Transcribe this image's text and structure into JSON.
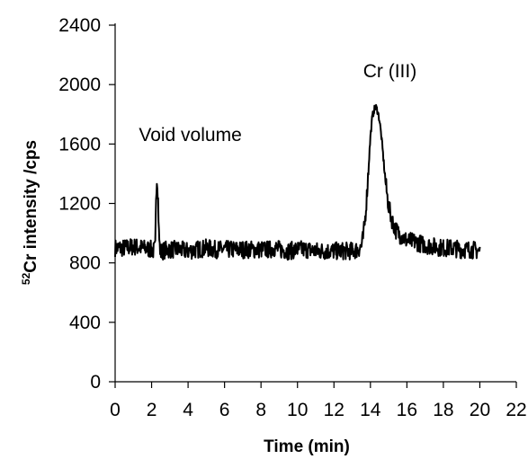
{
  "chart_data": {
    "type": "line",
    "xlabel": "Time (min)",
    "ylabel_sup": "52",
    "ylabel_main": "Cr intensity /cps",
    "xlim": [
      0,
      22
    ],
    "ylim": [
      0,
      2400
    ],
    "x_ticks": [
      "0",
      "2",
      "4",
      "6",
      "8",
      "10",
      "12",
      "14",
      "16",
      "18",
      "20",
      "22"
    ],
    "y_ticks": [
      "0",
      "400",
      "800",
      "1200",
      "1600",
      "2000",
      "2400"
    ],
    "grid": false,
    "legend": "none",
    "line_color": "#000000",
    "annotations": [
      {
        "text": "Void volume",
        "x": 1.3,
        "y": 1620
      },
      {
        "text": "Cr (III)",
        "x": 13.6,
        "y": 2050
      }
    ],
    "series": [
      {
        "x": [
          0.0,
          0.5,
          1.0,
          1.5,
          2.0,
          2.1,
          2.2,
          2.25,
          2.3,
          2.35,
          2.4,
          2.45,
          2.5,
          2.6,
          2.8,
          3.0,
          3.5,
          4.0,
          4.5,
          5.0,
          5.5,
          6.0,
          6.5,
          7.0,
          7.5,
          8.0,
          8.5,
          8.7,
          8.8,
          9.0,
          9.5,
          10.0,
          10.5,
          11.0,
          11.5,
          12.0,
          12.5,
          13.0,
          13.3,
          13.5,
          13.6,
          13.7,
          13.8,
          13.9,
          14.0,
          14.1,
          14.2,
          14.3,
          14.4,
          14.5,
          14.6,
          14.7,
          14.8,
          14.9,
          15.0,
          15.2,
          15.4,
          15.6,
          15.8,
          16.0,
          16.5,
          17.0,
          17.5,
          18.0,
          18.5,
          19.0,
          19.5,
          20.0
        ],
        "y": [
          900,
          900,
          910,
          900,
          890,
          880,
          900,
          1300,
          1380,
          1250,
          1000,
          900,
          870,
          880,
          890,
          890,
          890,
          880,
          890,
          900,
          890,
          890,
          890,
          890,
          890,
          890,
          890,
          900,
          900,
          890,
          880,
          890,
          890,
          880,
          880,
          880,
          880,
          880,
          890,
          910,
          970,
          1080,
          1250,
          1450,
          1650,
          1780,
          1830,
          1850,
          1820,
          1760,
          1650,
          1520,
          1380,
          1270,
          1180,
          1080,
          1020,
          990,
          970,
          950,
          940,
          920,
          910,
          900,
          900,
          890,
          890,
          880
        ]
      }
    ]
  }
}
